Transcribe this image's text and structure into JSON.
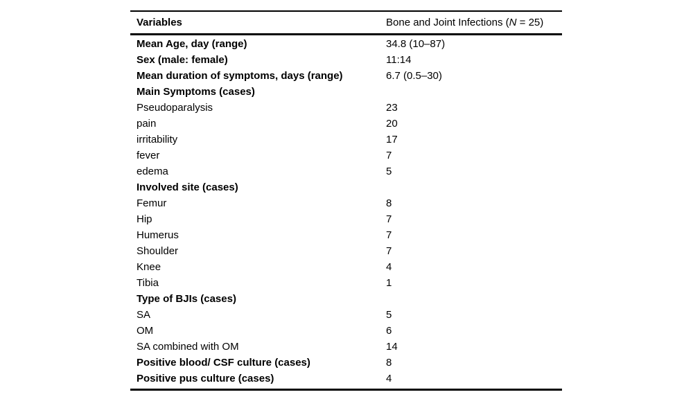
{
  "table": {
    "header": {
      "variables_label": "Variables",
      "group_prefix": "Bone and Joint Infections (",
      "group_n": "N",
      "group_suffix": " = 25)"
    },
    "rows": [
      {
        "label": "Mean Age, day (range)",
        "value": "34.8 (10–87)",
        "bold": true
      },
      {
        "label": "Sex (male: female)",
        "value": "11:14",
        "bold": true
      },
      {
        "label": "Mean duration of symptoms, days (range)",
        "value": "6.7 (0.5–30)",
        "bold": true
      },
      {
        "label": "Main Symptoms (cases)",
        "value": "",
        "bold": true
      },
      {
        "label": "Pseudoparalysis",
        "value": "23",
        "bold": false
      },
      {
        "label": "pain",
        "value": "20",
        "bold": false
      },
      {
        "label": "irritability",
        "value": "17",
        "bold": false
      },
      {
        "label": "fever",
        "value": "7",
        "bold": false
      },
      {
        "label": "edema",
        "value": "5",
        "bold": false
      },
      {
        "label": "Involved site (cases)",
        "value": "",
        "bold": true
      },
      {
        "label": "Femur",
        "value": "8",
        "bold": false
      },
      {
        "label": "Hip",
        "value": "7",
        "bold": false
      },
      {
        "label": "Humerus",
        "value": "7",
        "bold": false
      },
      {
        "label": "Shoulder",
        "value": "7",
        "bold": false
      },
      {
        "label": "Knee",
        "value": "4",
        "bold": false
      },
      {
        "label": "Tibia",
        "value": "1",
        "bold": false
      },
      {
        "label": "Type of BJIs (cases)",
        "value": "",
        "bold": true
      },
      {
        "label": "SA",
        "value": "5",
        "bold": false
      },
      {
        "label": "OM",
        "value": "6",
        "bold": false
      },
      {
        "label": "SA combined with OM",
        "value": "14",
        "bold": false
      },
      {
        "label": "Positive blood/ CSF culture (cases)",
        "value": "8",
        "bold": true
      },
      {
        "label": "Positive pus culture (cases)",
        "value": "4",
        "bold": true
      }
    ]
  }
}
